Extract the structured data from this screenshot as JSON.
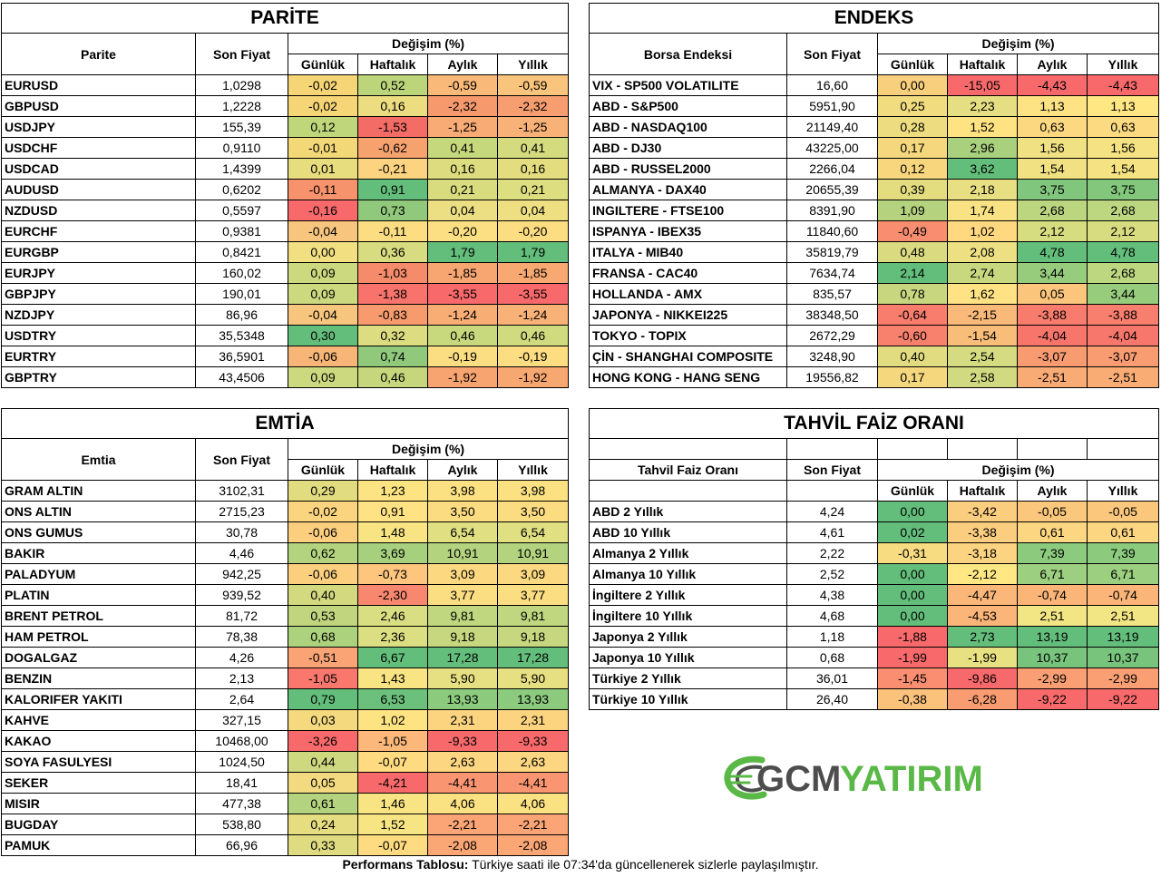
{
  "parite": {
    "title": "PARİTE",
    "col_name": "Parite",
    "col_price": "Son Fiyat",
    "col_change": "Değişim (%)",
    "col_daily": "Günlük",
    "col_weekly": "Haftalık",
    "col_monthly": "Aylık",
    "col_yearly": "Yıllık",
    "rows": [
      {
        "name": "EURUSD",
        "price": "1,0298",
        "d": "-0,02",
        "w": "0,52",
        "m": "-0,59",
        "y": "-0,59",
        "cd": "#f5d575",
        "cw": "#bcd57a",
        "cm": "#f9b979",
        "cy": "#f9c47c"
      },
      {
        "name": "GBPUSD",
        "price": "1,2228",
        "d": "-0,02",
        "w": "0,16",
        "m": "-2,32",
        "y": "-2,32",
        "cd": "#f5d575",
        "cw": "#ecdd80",
        "cm": "#f69a6d",
        "cy": "#f69e6f"
      },
      {
        "name": "USDJPY",
        "price": "155,39",
        "d": "0,12",
        "w": "-1,53",
        "m": "-1,25",
        "y": "-1,25",
        "cd": "#c0d67b",
        "cw": "#f36c65",
        "cm": "#f8ab74",
        "cy": "#f8b277"
      },
      {
        "name": "USDCHF",
        "price": "0,9110",
        "d": "-0,01",
        "w": "-0,62",
        "m": "0,41",
        "y": "0,41",
        "cd": "#f3d877",
        "cw": "#f6a26f",
        "cm": "#c6d87c",
        "cy": "#d4db7e"
      },
      {
        "name": "USDCAD",
        "price": "1,4399",
        "d": "0,01",
        "w": "-0,21",
        "m": "0,16",
        "y": "0,16",
        "cd": "#e7dc7e",
        "cw": "#fcd481",
        "cm": "#dddd80",
        "cy": "#e3dd80"
      },
      {
        "name": "AUDUSD",
        "price": "0,6202",
        "d": "-0,11",
        "w": "0,91",
        "m": "0,21",
        "y": "0,21",
        "cd": "#f6926c",
        "cw": "#63be7b",
        "cm": "#d8dc7f",
        "cy": "#ddde80"
      },
      {
        "name": "NZDUSD",
        "price": "0,5597",
        "d": "-0,16",
        "w": "0,73",
        "m": "0,04",
        "y": "0,04",
        "cd": "#f8696b",
        "cw": "#91c97c",
        "cm": "#ecde82",
        "cy": "#eee082"
      },
      {
        "name": "EURCHF",
        "price": "0,9381",
        "d": "-0,04",
        "w": "-0,11",
        "m": "-0,20",
        "y": "-0,20",
        "cd": "#f7c57d",
        "cw": "#fcdd82",
        "cm": "#fcdf82",
        "cy": "#fddd81"
      },
      {
        "name": "EURGBP",
        "price": "0,8421",
        "d": "0,00",
        "w": "0,36",
        "m": "1,79",
        "y": "1,79",
        "cd": "#f1df82",
        "cw": "#d6dc7f",
        "cm": "#63be7b",
        "cy": "#63be7b"
      },
      {
        "name": "EURJPY",
        "price": "160,02",
        "d": "0,09",
        "w": "-1,03",
        "m": "-1,85",
        "y": "-1,85",
        "cd": "#ccd97e",
        "cw": "#f58b6a",
        "cm": "#f7a671",
        "cy": "#f8a972"
      },
      {
        "name": "GBPJPY",
        "price": "190,01",
        "d": "0,09",
        "w": "-1,38",
        "m": "-3,55",
        "y": "-3,55",
        "cd": "#ccd97e",
        "cw": "#f8736c",
        "cm": "#f8696b",
        "cy": "#f8696b"
      },
      {
        "name": "NZDJPY",
        "price": "86,96",
        "d": "-0,04",
        "w": "-0,83",
        "m": "-1,24",
        "y": "-1,24",
        "cd": "#f7c57d",
        "cw": "#f79b6e",
        "cm": "#f8ad75",
        "cy": "#f8b277"
      },
      {
        "name": "USDTRY",
        "price": "35,5348",
        "d": "0,30",
        "w": "0,32",
        "m": "0,46",
        "y": "0,46",
        "cd": "#63be7b",
        "cw": "#dcdc80",
        "cm": "#c8d97d",
        "cy": "#d0da7e"
      },
      {
        "name": "EURTRY",
        "price": "36,5901",
        "d": "-0,06",
        "w": "0,74",
        "m": "-0,19",
        "y": "-0,19",
        "cd": "#f7b677",
        "cw": "#90c87c",
        "cm": "#fcde82",
        "cy": "#fddd81"
      },
      {
        "name": "GBPTRY",
        "price": "43,4506",
        "d": "0,09",
        "w": "0,46",
        "m": "-1,92",
        "y": "-1,92",
        "cd": "#ccd97e",
        "cw": "#c6d67c",
        "cm": "#f7a470",
        "cy": "#f7a770"
      }
    ]
  },
  "endeks": {
    "title": "ENDEKS",
    "col_name": "Borsa Endeksi",
    "col_price": "Son Fiyat",
    "col_change": "Değişim (%)",
    "col_daily": "Günlük",
    "col_weekly": "Haftalık",
    "col_monthly": "Aylık",
    "col_yearly": "Yıllık",
    "rows": [
      {
        "name": "VIX  - SP500 VOLATILITE",
        "price": "16,60",
        "d": "0,00",
        "w": "-15,05",
        "m": "-4,43",
        "y": "-4,43",
        "cd": "#f8cf7d",
        "cw": "#f8696b",
        "cm": "#f8696b",
        "cy": "#f8696b"
      },
      {
        "name": "ABD - S&P500",
        "price": "5951,90",
        "d": "0,25",
        "w": "2,23",
        "m": "1,13",
        "y": "1,13",
        "cd": "#f1dc80",
        "cw": "#e6de82",
        "cm": "#fde383",
        "cy": "#ffe784"
      },
      {
        "name": "ABD - NASDAQ100",
        "price": "21149,40",
        "d": "0,28",
        "w": "1,52",
        "m": "0,63",
        "y": "0,63",
        "cd": "#eedc80",
        "cw": "#ffe383",
        "cm": "#fcd881",
        "cy": "#fcda81"
      },
      {
        "name": "ABD - DJ30",
        "price": "43225,00",
        "d": "0,17",
        "w": "2,96",
        "m": "1,56",
        "y": "1,56",
        "cd": "#f5d87e",
        "cw": "#a8d07d",
        "cm": "#f0e183",
        "cy": "#f5e283"
      },
      {
        "name": "ABD - RUSSEL2000",
        "price": "2266,04",
        "d": "0,12",
        "w": "3,62",
        "m": "1,54",
        "y": "1,54",
        "cd": "#f8d67e",
        "cw": "#63be7b",
        "cm": "#f1e183",
        "cy": "#f5e283"
      },
      {
        "name": "ALMANYA - DAX40",
        "price": "20655,39",
        "d": "0,39",
        "w": "2,18",
        "m": "3,75",
        "y": "3,75",
        "cd": "#e3dd80",
        "cw": "#e8df82",
        "cm": "#80c67c",
        "cy": "#82c77c"
      },
      {
        "name": "INGILTERE - FTSE100",
        "price": "8391,90",
        "d": "1,09",
        "w": "1,74",
        "m": "2,68",
        "y": "2,68",
        "cd": "#b5d27e",
        "cw": "#f9e283",
        "cm": "#bcd67f",
        "cy": "#bdd680"
      },
      {
        "name": "ISPANYA - IBEX35",
        "price": "11840,60",
        "d": "-0,49",
        "w": "1,02",
        "m": "2,12",
        "y": "2,12",
        "cd": "#f88e6f",
        "cw": "#ffd880",
        "cm": "#d6dc80",
        "cy": "#d7dc80"
      },
      {
        "name": "ITALYA - MIB40",
        "price": "35819,79",
        "d": "0,48",
        "w": "2,08",
        "m": "4,78",
        "y": "4,78",
        "cd": "#dadb80",
        "cw": "#ede083",
        "cm": "#63be7b",
        "cy": "#63be7b"
      },
      {
        "name": "FRANSA - CAC40",
        "price": "7634,74",
        "d": "2,14",
        "w": "2,74",
        "m": "3,44",
        "y": "2,68",
        "cd": "#63be7b",
        "cw": "#c8d87f",
        "cm": "#97cc7d",
        "cy": "#bdd680"
      },
      {
        "name": "HOLLANDA - AMX",
        "price": "835,57",
        "d": "0,78",
        "w": "1,62",
        "m": "0,05",
        "y": "3,44",
        "cd": "#c8d77f",
        "cw": "#fee283",
        "cm": "#fbc67c",
        "cy": "#98cc7d"
      },
      {
        "name": "JAPONYA - NIKKEI225",
        "price": "38348,50",
        "d": "-0,64",
        "w": "-2,15",
        "m": "-3,88",
        "y": "-3,88",
        "cd": "#f87d6d",
        "cw": "#f9b979",
        "cm": "#f87c6d",
        "cy": "#f87e6d"
      },
      {
        "name": "TOKYO - TOPIX",
        "price": "2672,29",
        "d": "-0,60",
        "w": "-1,54",
        "m": "-4,04",
        "y": "-4,04",
        "cd": "#f8816e",
        "cw": "#f9bd7a",
        "cm": "#f8756c",
        "cy": "#f8776c"
      },
      {
        "name": "ÇİN - SHANGHAI COMPOSITE",
        "price": "3248,90",
        "d": "0,40",
        "w": "2,54",
        "m": "-3,07",
        "y": "-3,07",
        "cd": "#e2dc80",
        "cw": "#d4db80",
        "cm": "#f89b71",
        "cy": "#f99c72"
      },
      {
        "name": "HONG KONG - HANG SENG",
        "price": "19556,82",
        "d": "0,17",
        "w": "2,58",
        "m": "-2,51",
        "y": "-2,51",
        "cd": "#f5d87e",
        "cw": "#d1da80",
        "cm": "#f9ab75",
        "cy": "#f9ad75"
      }
    ]
  },
  "emtia": {
    "title": "EMTİA",
    "col_name": "Emtia",
    "col_price": "Son Fiyat",
    "col_change": "Değişim (%)",
    "col_daily": "Günlük",
    "col_weekly": "Haftalık",
    "col_monthly": "Aylık",
    "col_yearly": "Yıllık",
    "rows": [
      {
        "name": "GRAM ALTIN",
        "price": "3102,31",
        "d": "0,29",
        "w": "1,23",
        "m": "3,98",
        "y": "3,98",
        "cd": "#e2dc80",
        "cw": "#fce483",
        "cm": "#fbe182",
        "cy": "#fbe182"
      },
      {
        "name": "ONS ALTIN",
        "price": "2715,23",
        "d": "-0,02",
        "w": "0,91",
        "m": "3,50",
        "y": "3,50",
        "cd": "#fbd480",
        "cw": "#fee283",
        "cm": "#fcdc81",
        "cy": "#fcdc81"
      },
      {
        "name": "ONS GUMUS",
        "price": "30,78",
        "d": "-0,06",
        "w": "1,48",
        "m": "6,54",
        "y": "6,54",
        "cd": "#fccf7f",
        "cw": "#f8e483",
        "cm": "#e0df82",
        "cy": "#e0df82"
      },
      {
        "name": "BAKIR",
        "price": "4,46",
        "d": "0,62",
        "w": "3,69",
        "m": "10,91",
        "y": "10,91",
        "cd": "#b4d37e",
        "cw": "#a6d07e",
        "cm": "#b3d37f",
        "cy": "#b3d37f"
      },
      {
        "name": "PALADYUM",
        "price": "942,25",
        "d": "-0,06",
        "w": "-0,73",
        "m": "3,09",
        "y": "3,09",
        "cd": "#fccf7f",
        "cw": "#fdc57d",
        "cm": "#fcd981",
        "cy": "#fcd981"
      },
      {
        "name": "PLATIN",
        "price": "939,52",
        "d": "0,40",
        "w": "-2,30",
        "m": "3,77",
        "y": "3,77",
        "cd": "#d3d97f",
        "cw": "#f8876f",
        "cm": "#fcde82",
        "cy": "#fcde82"
      },
      {
        "name": "BRENT PETROL",
        "price": "81,72",
        "d": "0,53",
        "w": "2,46",
        "m": "9,81",
        "y": "9,81",
        "cd": "#c1d57f",
        "cw": "#d8de81",
        "cm": "#c0d67f",
        "cy": "#c0d67f"
      },
      {
        "name": "HAM PETROL",
        "price": "78,38",
        "d": "0,68",
        "w": "2,36",
        "m": "9,18",
        "y": "9,18",
        "cd": "#add27e",
        "cw": "#dcde82",
        "cm": "#c6d77f",
        "cy": "#c6d77f"
      },
      {
        "name": "DOGALGAZ",
        "price": "4,26",
        "d": "-0,51",
        "w": "6,67",
        "m": "17,28",
        "y": "17,28",
        "cd": "#faa375",
        "cw": "#63be7b",
        "cm": "#63be7b",
        "cy": "#63be7b"
      },
      {
        "name": "BENZIN",
        "price": "2,13",
        "d": "-1,05",
        "w": "1,43",
        "m": "5,90",
        "y": "5,90",
        "cd": "#f9776d",
        "cw": "#f9e483",
        "cm": "#e7e082",
        "cy": "#e7e082"
      },
      {
        "name": "KALORIFER YAKITI",
        "price": "2,64",
        "d": "0,79",
        "w": "6,53",
        "m": "13,93",
        "y": "13,93",
        "cd": "#63be7b",
        "cw": "#6bc07c",
        "cm": "#8ccb7e",
        "cy": "#8ccb7e"
      },
      {
        "name": "KAHVE",
        "price": "327,15",
        "d": "0,03",
        "w": "1,02",
        "m": "2,31",
        "y": "2,31",
        "cd": "#f5d97f",
        "cw": "#fee383",
        "cm": "#fcd480",
        "cy": "#fcd480"
      },
      {
        "name": "KAKAO",
        "price": "10468,00",
        "d": "-3,26",
        "w": "-1,05",
        "m": "-9,33",
        "y": "-9,33",
        "cd": "#f8696b",
        "cw": "#fcb87a",
        "cm": "#f8696b",
        "cy": "#f8696b"
      },
      {
        "name": "SOYA FASULYESI",
        "price": "1024,50",
        "d": "0,44",
        "w": "-0,07",
        "m": "2,63",
        "y": "2,63",
        "cd": "#ced87f",
        "cw": "#feda81",
        "cm": "#fcd681",
        "cy": "#fcd681"
      },
      {
        "name": "SEKER",
        "price": "18,41",
        "d": "0,05",
        "w": "-4,21",
        "m": "-4,41",
        "y": "-4,41",
        "cd": "#f3d97f",
        "cw": "#f8696b",
        "cm": "#f99571",
        "cy": "#f99571"
      },
      {
        "name": "MISIR",
        "price": "477,38",
        "d": "0,61",
        "w": "1,46",
        "m": "4,06",
        "y": "4,06",
        "cd": "#b4d37e",
        "cw": "#f9e483",
        "cm": "#fae182",
        "cy": "#fae182"
      },
      {
        "name": "BUGDAY",
        "price": "538,80",
        "d": "0,24",
        "w": "1,52",
        "m": "-2,21",
        "y": "-2,21",
        "cd": "#e6dc80",
        "cw": "#f7e483",
        "cm": "#fba475",
        "cy": "#fba475"
      },
      {
        "name": "PAMUK",
        "price": "66,96",
        "d": "0,33",
        "w": "-0,07",
        "m": "-2,08",
        "y": "-2,08",
        "cd": "#dedb80",
        "cw": "#feda81",
        "cm": "#fba675",
        "cy": "#fba675"
      }
    ]
  },
  "tahvil": {
    "title": "TAHVİL FAİZ ORANI",
    "col_name": "Tahvil Faiz Oranı",
    "col_price": "Son Fiyat",
    "col_change": "Değişim (%)",
    "col_daily": "Günlük",
    "col_weekly": "Haftalık",
    "col_monthly": "Aylık",
    "col_yearly": "Yıllık",
    "rows": [
      {
        "name": "ABD 2 Yıllık",
        "price": "4,24",
        "d": "0,00",
        "w": "-3,42",
        "m": "-0,05",
        "y": "-0,05",
        "cd": "#63be7b",
        "cw": "#fbcd7f",
        "cm": "#fbc77c",
        "cy": "#fbc77c"
      },
      {
        "name": "ABD 10 Yıllık",
        "price": "4,61",
        "d": "0,02",
        "w": "-3,38",
        "m": "0,61",
        "y": "0,61",
        "cd": "#63be7b",
        "cw": "#fbce7f",
        "cm": "#fcd680",
        "cy": "#fcd680"
      },
      {
        "name": "Almanya 2 Yıllık",
        "price": "2,22",
        "d": "-0,31",
        "w": "-3,18",
        "m": "7,39",
        "y": "7,39",
        "cd": "#f8dc81",
        "cw": "#fcd380",
        "cm": "#8ccb7e",
        "cy": "#8ccb7e"
      },
      {
        "name": "Almanya 10 Yıllık",
        "price": "2,52",
        "d": "0,00",
        "w": "-2,12",
        "m": "6,71",
        "y": "6,71",
        "cd": "#63be7b",
        "cw": "#ffe884",
        "cm": "#9ccf7f",
        "cy": "#9ccf7f"
      },
      {
        "name": "İngiltere 2 Yıllık",
        "price": "4,38",
        "d": "0,00",
        "w": "-4,47",
        "m": "-0,74",
        "y": "-0,74",
        "cd": "#63be7b",
        "cw": "#fbb679",
        "cm": "#fbb579",
        "cy": "#fbb579"
      },
      {
        "name": "İngiltere 10 Yıllık",
        "price": "4,68",
        "d": "0,00",
        "w": "-4,53",
        "m": "2,51",
        "y": "2,51",
        "cd": "#63be7b",
        "cw": "#fbb579",
        "cm": "#f2e583",
        "cy": "#f2e583"
      },
      {
        "name": "Japonya 2 Yıllık",
        "price": "1,18",
        "d": "-1,88",
        "w": "2,73",
        "m": "13,19",
        "y": "13,19",
        "cd": "#f8696b",
        "cw": "#63be7b",
        "cm": "#63be7b",
        "cy": "#63be7b"
      },
      {
        "name": "Japonya 10 Yıllık",
        "price": "0,68",
        "d": "-1,99",
        "w": "-1,99",
        "m": "10,37",
        "y": "10,37",
        "cd": "#f8696b",
        "cw": "#e8e182",
        "cm": "#78c47d",
        "cy": "#78c47d"
      },
      {
        "name": "Türkiye 2 Yıllık",
        "price": "36,01",
        "d": "-1,45",
        "w": "-9,86",
        "m": "-2,99",
        "y": "-2,99",
        "cd": "#f98e70",
        "cw": "#f8696b",
        "cm": "#fa9f73",
        "cy": "#fa9f73"
      },
      {
        "name": "Türkiye 10 Yıllık",
        "price": "26,40",
        "d": "-0,38",
        "w": "-6,28",
        "m": "-9,22",
        "y": "-9,22",
        "cd": "#fbc27c",
        "cw": "#fa9c72",
        "cm": "#f8696b",
        "cy": "#f8696b"
      }
    ]
  },
  "logo": {
    "text_gcm": "GCM",
    "text_yatirim": "YATIRIM",
    "color_gcm": "#4d4d4d",
    "color_yatirim": "#5ab946"
  },
  "footer": {
    "label": "Performans Tablosu:",
    "text": "Türkiye saati ile 07:34'da güncellenerek sizlerle paylaşılmıştır."
  }
}
